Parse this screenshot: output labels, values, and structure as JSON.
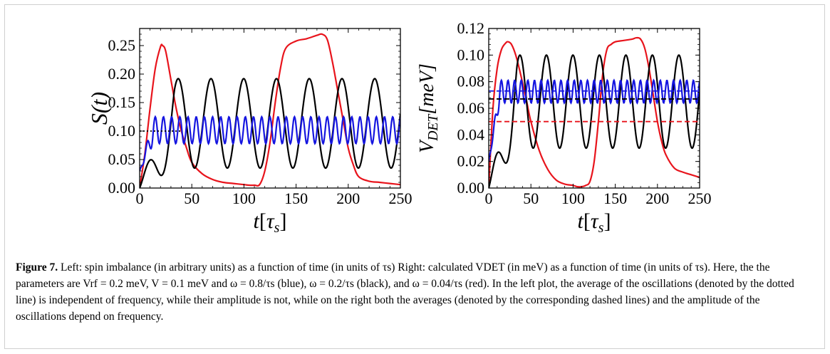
{
  "chart_data": [
    {
      "type": "line",
      "ylabel": "S(t)",
      "xlabel": "t[τs]",
      "xlim": [
        0,
        250
      ],
      "ylim": [
        0,
        0.28
      ],
      "xticks": [
        "0",
        "50",
        "100",
        "150",
        "200",
        "250"
      ],
      "yticks": [
        "0.00",
        "0.05",
        "0.10",
        "0.15",
        "0.20",
        "0.25"
      ],
      "grid": false,
      "series": [
        {
          "color": "#e8141c",
          "style": "solid",
          "x": [
            0,
            5,
            10,
            15,
            20,
            22,
            25,
            30,
            35,
            40,
            45,
            50,
            60,
            70,
            80,
            90,
            100,
            105,
            110,
            115,
            120,
            125,
            130,
            135,
            140,
            150,
            160,
            170,
            175,
            180,
            185,
            190,
            195,
            200,
            205,
            210,
            220,
            230,
            240,
            250
          ],
          "y": [
            0.0,
            0.06,
            0.14,
            0.21,
            0.248,
            0.25,
            0.24,
            0.19,
            0.14,
            0.1,
            0.07,
            0.045,
            0.025,
            0.015,
            0.01,
            0.008,
            0.006,
            0.005,
            0.005,
            0.006,
            0.03,
            0.08,
            0.15,
            0.21,
            0.245,
            0.258,
            0.262,
            0.268,
            0.27,
            0.26,
            0.22,
            0.17,
            0.12,
            0.07,
            0.04,
            0.02,
            0.012,
            0.01,
            0.008,
            0.006
          ]
        },
        {
          "color": "#000000",
          "style": "solid",
          "period": 31.4,
          "min": 0.035,
          "max": 0.192,
          "first_x": 37,
          "start": 0.0,
          "mean": 0.1
        },
        {
          "color": "#1515e0",
          "style": "solid",
          "period": 7.85,
          "min": 0.078,
          "max": 0.125,
          "first_x": 15,
          "start": 0.03,
          "mean": 0.1
        },
        {
          "color": "#000000",
          "style": "dotted",
          "y": 0.1,
          "x_range": [
            0,
            40
          ]
        }
      ]
    },
    {
      "type": "line",
      "ylabel": "VDET[meV]",
      "xlabel": "t[τs]",
      "xlim": [
        0,
        250
      ],
      "ylim": [
        0,
        0.12
      ],
      "xticks": [
        "0",
        "50",
        "100",
        "150",
        "200",
        "250"
      ],
      "yticks": [
        "0.00",
        "0.02",
        "0.04",
        "0.06",
        "0.08",
        "0.10",
        "0.12"
      ],
      "grid": false,
      "series": [
        {
          "color": "#e8141c",
          "style": "solid",
          "x": [
            0,
            5,
            10,
            15,
            20,
            23,
            27,
            32,
            38,
            45,
            50,
            60,
            70,
            80,
            90,
            100,
            105,
            110,
            115,
            120,
            125,
            130,
            135,
            140,
            145,
            150,
            160,
            170,
            175,
            180,
            185,
            190,
            195,
            200,
            205,
            210,
            220,
            230,
            240,
            250
          ],
          "y": [
            0.0,
            0.06,
            0.09,
            0.104,
            0.109,
            0.11,
            0.108,
            0.1,
            0.085,
            0.065,
            0.05,
            0.028,
            0.014,
            0.006,
            0.003,
            0.002,
            0.001,
            0.001,
            0.002,
            0.005,
            0.02,
            0.05,
            0.085,
            0.104,
            0.108,
            0.11,
            0.111,
            0.112,
            0.113,
            0.112,
            0.105,
            0.09,
            0.07,
            0.05,
            0.035,
            0.025,
            0.015,
            0.012,
            0.01,
            0.008
          ]
        },
        {
          "color": "#000000",
          "style": "solid",
          "period": 31.4,
          "min": 0.03,
          "max": 0.1,
          "first_x": 37,
          "start": 0.0,
          "mean": 0.066
        },
        {
          "color": "#1515e0",
          "style": "solid",
          "period": 7.85,
          "min": 0.064,
          "max": 0.081,
          "first_x": 15,
          "start": 0.02,
          "mean": 0.073
        },
        {
          "color": "#e8141c",
          "style": "dashed",
          "y": 0.05
        },
        {
          "color": "#000000",
          "style": "dashed",
          "y": 0.067
        },
        {
          "color": "#1515e0",
          "style": "dashed",
          "y": 0.073
        }
      ]
    }
  ],
  "caption": {
    "label": "Figure 7.",
    "text": " Left: spin imbalance (in arbitrary units) as a function of time (in units of τs) Right: calculated VDET (in meV) as a function of time (in units of τs). Here, the the parameters are Vrf = 0.2 meV, V = 0.1 meV and ω = 0.8/τs (blue), ω = 0.2/τs (black), and ω = 0.04/τs (red). In the left plot, the average of the oscillations (denoted by the dotted line) is independent of frequency, while their amplitude is not, while on the right both the averages (denoted by the corresponding dashed lines) and the amplitude of the oscillations depend on frequency."
  }
}
